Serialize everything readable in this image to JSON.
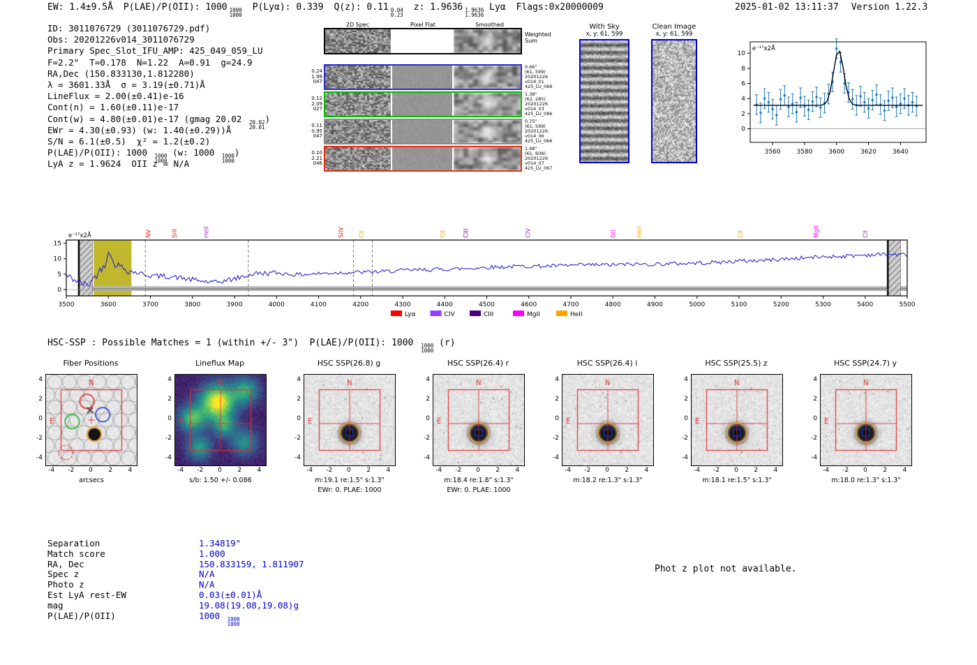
{
  "header": {
    "ew": "EW: 1.4±9.5Å",
    "plae_label": "P(LAE)/P(OII): 1000",
    "plae_hi": "1000",
    "plae_lo": "1000",
    "plya": "P(Lyα): 0.339",
    "qz_label": "Q(z): 0.11",
    "qz_hi": "0.04",
    "qz_lo": "0.23",
    "z_label": "z: 1.9636",
    "z_hi": "1.9636",
    "z_lo": "1.9636",
    "z_suffix": "Lyα",
    "flags": "Flags:0x20000009",
    "timestamp": "2025-01-02 13:11:37",
    "version": "Version 1.22.3"
  },
  "info": {
    "lines": [
      "ID: 3011076729 (3011076729.pdf)",
      "Obs: 20201226v014_3011076729",
      "Primary Spec_Slot_IFU_AMP: 425_049_059_LU",
      "F=2.2\"  T=0.178  N=1.22  A=0.91  g=24.9",
      "RA,Dec (150.833130,1.812280)",
      "λ = 3601.33Å  σ = 3.19(±0.71)Å",
      "LineFlux = 2.00(±0.41)e-16",
      "Cont(n) = 1.60(±0.11)e-17",
      "Cont(w) = 4.80(±0.01)e-17 (gmag 20.02 {20.02|20.01})",
      "EWr = 4.30(±0.93) (w: 1.40(±0.29))Å",
      "S/N = 6.1(±0.5)  χ² = 1.2(±0.2)",
      "P(LAE)/P(OII): 1000 {1000|1000} (w: 1000 {1000|1000})",
      "LyA z = 1.9624  OII z = N/A"
    ]
  },
  "spec2d": {
    "columns": [
      "2D Spec",
      "Pixel Flat",
      "Smoothed"
    ],
    "weighted_label": [
      "Weighted",
      "Sum"
    ],
    "rows": [
      {
        "left": [
          "0.24",
          "1.99",
          "047"
        ],
        "right": [
          "0.66\"",
          "(61, 599)",
          "20201226",
          "v014_01",
          "425_LU_066"
        ],
        "color": "#2929c9"
      },
      {
        "left": [
          "0.12",
          "2.09",
          "027"
        ],
        "right": [
          "1.38\"",
          "(62, 285)",
          "20201226",
          "v014_03",
          "425_LU_086"
        ],
        "color": "#00bb00"
      },
      {
        "left": [
          "0.11",
          "0.95",
          "047"
        ],
        "right": [
          "0.75\"",
          "(61, 599)",
          "20201226",
          "v014_06",
          "425_LU_066"
        ],
        "color": "#8a8a8a"
      },
      {
        "left": [
          "0.10",
          "2.21",
          "046"
        ],
        "right": [
          "1.98\"",
          "(61, 608)",
          "20201226",
          "v014_07",
          "425_LU_067"
        ],
        "color": "#e53010"
      }
    ]
  },
  "skyimgs": {
    "withsky_title": "With Sky",
    "withsky_sub": "x, y: 61, 599",
    "clean_title": "Clean Image",
    "clean_sub": "x, y: 61, 599",
    "border_color": "#0000cd"
  },
  "hsc_line": "HSC-SSP : Possible Matches = 1 (within +/- 3\")  P(LAE)/P(OII): 1000 {1000|1000} (r)",
  "cutouts": {
    "ticks": [
      -4,
      -2,
      0,
      2,
      4
    ],
    "north_label": "N",
    "east_label": "E",
    "panels": [
      {
        "title": "Fiber Positions",
        "foot": "arcsecs",
        "type": "fiber"
      },
      {
        "title": "Lineflux Map",
        "foot": "s/b: 1.50 +/- 0.086",
        "type": "lineflux"
      },
      {
        "title": "HSC SSP(26.8) g",
        "foot": "m:19.1 re:1.5\" s:1.3\"",
        "foot2": "EWr: 0. PLAE: 1000",
        "type": "img"
      },
      {
        "title": "HSC SSP(26.4) r",
        "foot": "m:18.4 re:1.8\" s:1.3\"",
        "foot2": "EWr: 0. PLAE: 1000",
        "type": "img"
      },
      {
        "title": "HSC SSP(26.4) i",
        "foot": "m:18.2 re:1.3\" s:1.3\"",
        "type": "img"
      },
      {
        "title": "HSC SSP(25.5) z",
        "foot": "m:18.1 re:1.5\" s:1.3\"",
        "type": "img"
      },
      {
        "title": "HSC SSP(24.7) y",
        "foot": "m:18.0 re:1.3\" s:1.3\"",
        "type": "img"
      }
    ]
  },
  "match_table": {
    "value_color": "#0000cc",
    "rows": [
      {
        "label": "Separation",
        "value": "1.34819\""
      },
      {
        "label": "Match score",
        "value": "1.000"
      },
      {
        "label": "RA, Dec",
        "value": "150.833159, 1.811907"
      },
      {
        "label": "Spec z",
        "value": "N/A"
      },
      {
        "label": "Photo z",
        "value": "N/A"
      },
      {
        "label": "Est LyA rest-EW",
        "value": "0.03(±0.01)Å"
      },
      {
        "label": "mag",
        "value": "19.08(19.08,19.08)g"
      },
      {
        "label": "P(LAE)/P(OII)",
        "value": "1000 {1000|1000}"
      }
    ]
  },
  "photz_note": "Phot z plot not available.",
  "chart_data": [
    {
      "id": "emission_line_fit",
      "type": "scatter",
      "ylabel": "e⁻¹⁷x2Å",
      "xlim": [
        3546,
        3656
      ],
      "ylim": [
        -1.8,
        11.5
      ],
      "xticks": [
        3560,
        3580,
        3600,
        3620,
        3640
      ],
      "yticks": [
        0,
        2,
        4,
        6,
        8,
        10
      ],
      "gaussian": {
        "center": 3601.33,
        "sigma": 3.19,
        "amplitude": 7.3,
        "baseline": 3.1
      },
      "points": {
        "x_start": 3550,
        "x_step": 2.5,
        "err": 1.3,
        "y": [
          3.2,
          2.1,
          4.0,
          3.5,
          2.6,
          1.8,
          3.9,
          4.4,
          2.9,
          3.3,
          2.2,
          4.1,
          3.0,
          2.5,
          3.6,
          4.2,
          2.8,
          3.4,
          4.6,
          6.2,
          10.6,
          8.8,
          6.0,
          4.8,
          3.9,
          3.1,
          4.3,
          3.5,
          2.7,
          3.8,
          4.5,
          3.2,
          2.4,
          3.7,
          4.1,
          2.9,
          3.3,
          4.0,
          3.1,
          3.5,
          3.0
        ]
      },
      "point_color": "#1f77b4",
      "fit_color": "#000000"
    },
    {
      "id": "full_spectrum",
      "type": "line",
      "ylabel": "e⁻¹⁷x2Å",
      "xlim": [
        3500,
        5500
      ],
      "ylim": [
        -2,
        16
      ],
      "yticks": [
        0,
        5,
        10,
        15
      ],
      "xtick_start": 3500,
      "xtick_step": 100,
      "xtick_end": 5500,
      "line_color": "#1515cc",
      "x_start": 3500,
      "x_step_coarse": 50,
      "values": [
        4.5,
        1.2,
        9.5,
        6.0,
        4.5,
        4.2,
        3.2,
        2.2,
        3.5,
        5.2,
        5.4,
        4.8,
        5.2,
        5.5,
        5.6,
        5.8,
        6.2,
        6.4,
        6.6,
        6.8,
        7.2,
        7.4,
        7.6,
        7.6,
        7.8,
        8.0,
        8.0,
        8.2,
        8.2,
        8.4,
        8.6,
        8.8,
        9.2,
        9.4,
        9.8,
        10.2,
        10.6,
        10.8,
        11.2,
        11.4,
        11.2
      ],
      "peak": {
        "center": 3601.33,
        "sigma": 3.2,
        "amplitude": 4.0
      },
      "highlight_band": {
        "x0": 3565,
        "x1": 3655,
        "color": "#bdb21c"
      },
      "hatch_bands": [
        {
          "x0": 3528,
          "x1": 3562
        },
        {
          "x0": 5452,
          "x1": 5484
        }
      ],
      "dashed_lines": [
        3688,
        3933,
        4183,
        4228
      ],
      "noise_band": {
        "y0": -0.4,
        "y1": 1.1,
        "color": "#b5b5b5"
      },
      "emission_lines": [
        {
          "label": "NV",
          "wl": 3700,
          "color": "#e02020"
        },
        {
          "label": "SiII",
          "wl": 3762,
          "color": "#e02020"
        },
        {
          "label": "HeII",
          "wl": 3838,
          "color": "#9933cc"
        },
        {
          "label": "SiIV",
          "wl": 4158,
          "color": "#e02020"
        },
        {
          "label": "CII",
          "wl": 4207,
          "color": "#f0a500"
        },
        {
          "label": "CII",
          "wl": 4400,
          "color": "#f0a500"
        },
        {
          "label": "CIII",
          "wl": 4455,
          "color": "#7a1fa2"
        },
        {
          "label": "CIV",
          "wl": 4603,
          "color": "#9933cc"
        },
        {
          "label": "OII",
          "wl": 4805,
          "color": "#ff00ff"
        },
        {
          "label": "HeII",
          "wl": 4868,
          "color": "#f0a500"
        },
        {
          "label": "CII",
          "wl": 5108,
          "color": "#f0a500"
        },
        {
          "label": "MgII",
          "wl": 5288,
          "color": "#ff00ff"
        },
        {
          "label": "CII",
          "wl": 5405,
          "color": "#9933cc"
        }
      ],
      "legend": [
        {
          "label": "Lyα",
          "color": "#ff0000"
        },
        {
          "label": "CIV",
          "color": "#9340ff"
        },
        {
          "label": "CIII",
          "color": "#4b0082"
        },
        {
          "label": "MgII",
          "color": "#ff00ff"
        },
        {
          "label": "HeII",
          "color": "#ffa500"
        }
      ]
    }
  ]
}
